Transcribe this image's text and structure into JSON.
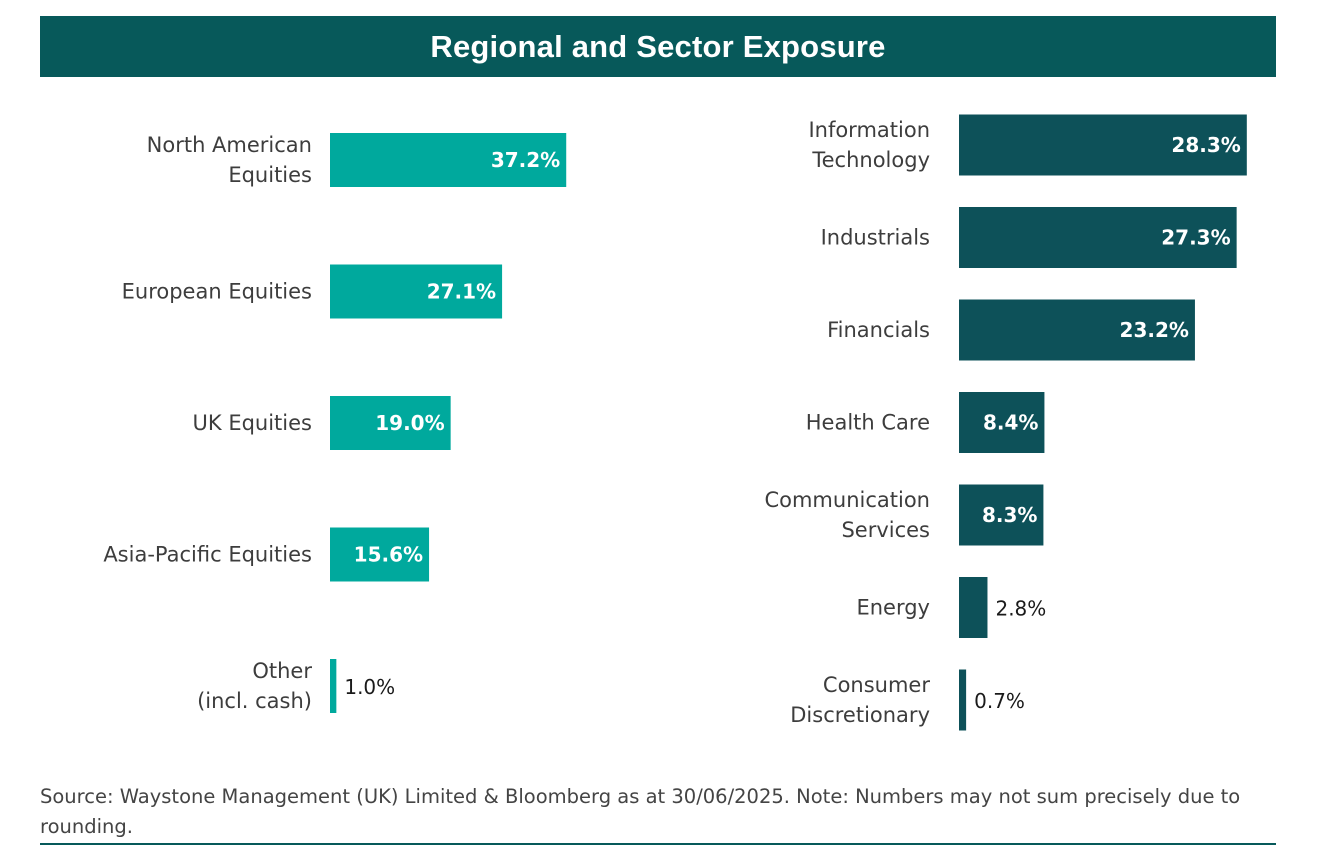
{
  "title": "Regional and Sector Exposure",
  "source": "Source: Waystone Management (UK) Limited & Bloomberg as at 30/06/2025. Note: Numbers may not sum precisely due to rounding.",
  "colors": {
    "header": "#07595a",
    "regional": "#00a99d",
    "sector": "#0d5159",
    "rule": "#07595a"
  },
  "chart_data": [
    {
      "type": "bar",
      "orientation": "horizontal",
      "categories": [
        [
          "North American",
          "Equities"
        ],
        [
          "European Equities"
        ],
        [
          "UK Equities"
        ],
        [
          "Asia-Pacific Equities"
        ],
        [
          "Other",
          "(incl. cash)"
        ]
      ],
      "values": [
        37.2,
        27.1,
        19.0,
        15.6,
        1.0
      ],
      "value_labels": [
        "37.2%",
        "27.1%",
        "19.0%",
        "15.6%",
        "1.0%"
      ],
      "unit": "%",
      "color": "#00a99d"
    },
    {
      "type": "bar",
      "orientation": "horizontal",
      "categories": [
        [
          "Information",
          "Technology"
        ],
        [
          "Industrials"
        ],
        [
          "Financials"
        ],
        [
          "Health Care"
        ],
        [
          "Communication",
          "Services"
        ],
        [
          "Energy"
        ],
        [
          "Consumer",
          "Discretionary"
        ]
      ],
      "values": [
        28.3,
        27.3,
        23.2,
        8.4,
        8.3,
        2.8,
        0.7
      ],
      "value_labels": [
        "28.3%",
        "27.3%",
        "23.2%",
        "8.4%",
        "8.3%",
        "2.8%",
        "0.7%"
      ],
      "unit": "%",
      "color": "#0d5159"
    }
  ]
}
